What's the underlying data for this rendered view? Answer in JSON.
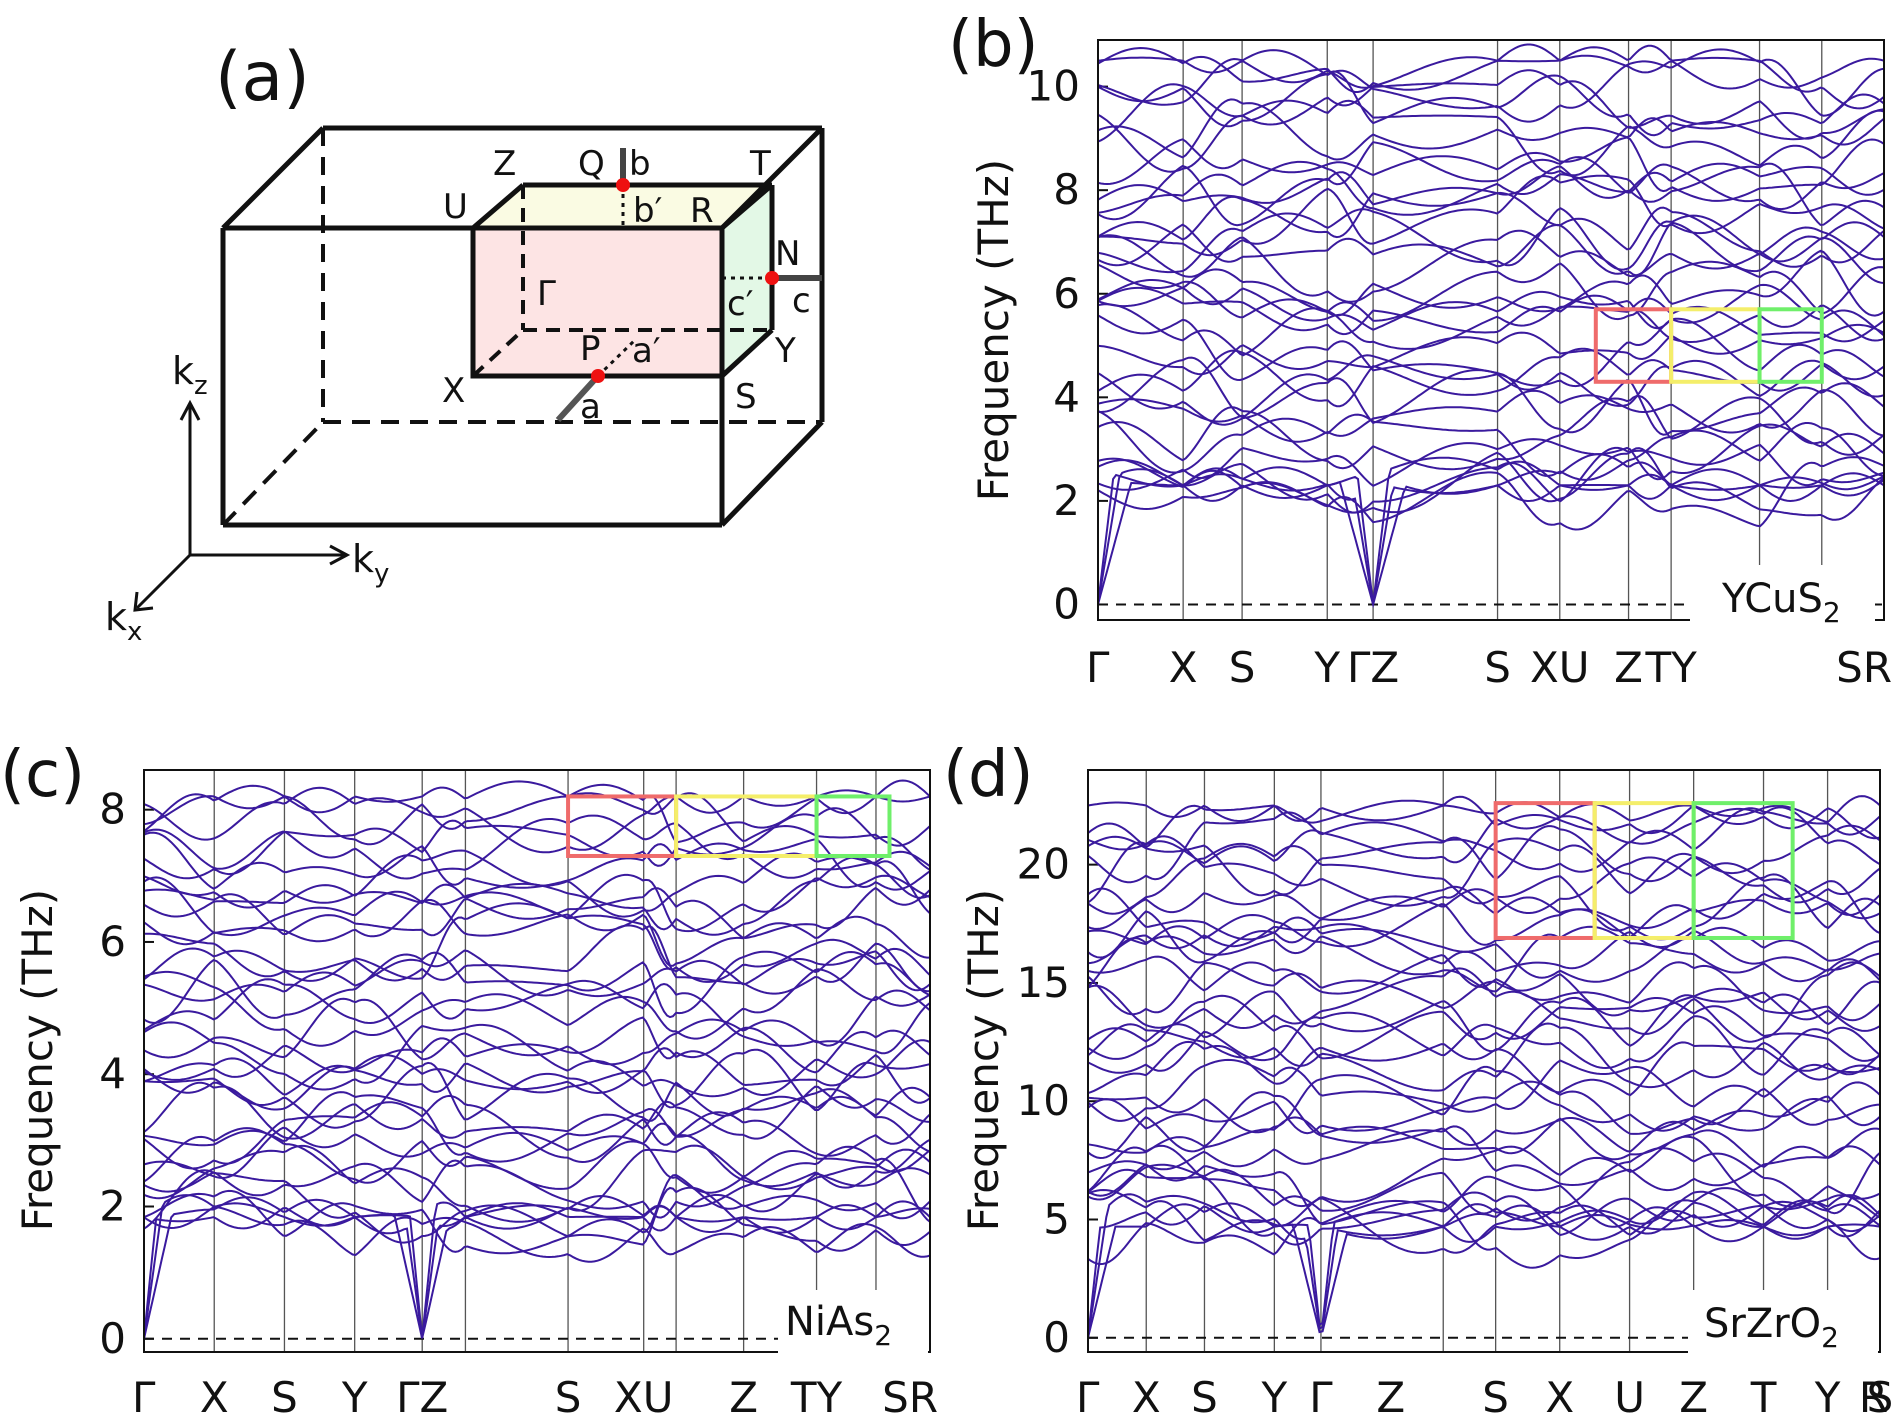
{
  "colors": {
    "band": "#3a1a9e",
    "box_red": "#ef6b6b",
    "box_yellow": "#f4ee6a",
    "box_green": "#6fef6a",
    "axis": "#111111"
  },
  "panel_a": {
    "letter": "(a)",
    "axes": {
      "kz": "k",
      "kz_sub": "z",
      "ky": "k",
      "ky_sub": "y",
      "kx": "k",
      "kx_sub": "x"
    },
    "points": {
      "Q": "Q",
      "b": "b",
      "T": "T",
      "Z": "Z",
      "U": "U",
      "bp": "b′",
      "R": "R",
      "N": "N",
      "Gamma": "Γ",
      "cp": "c′",
      "c": "c",
      "P": "P",
      "ap": "a′",
      "Y": "Y",
      "X": "X",
      "a": "a",
      "S": "S"
    }
  },
  "chart_data": [
    {
      "id": "b",
      "type": "line",
      "letter": "(b)",
      "material": "YCuS",
      "material_sub": "2",
      "ylabel": "Frequency (THz)",
      "ylim": [
        -0.3,
        10.9
      ],
      "yticks": [
        0,
        2,
        4,
        6,
        8,
        10
      ],
      "kpoints": [
        0,
        1.3,
        2.2,
        3.5,
        4.2,
        6.1,
        7.05,
        8.1,
        8.75,
        10.1,
        11.05,
        12.0
      ],
      "hs_labels": [
        "Γ",
        "X",
        "S",
        "Y",
        "ΓZ",
        "S",
        "XU",
        "Z",
        "TY",
        "SR"
      ],
      "hs_pos": [
        0,
        1.3,
        2.2,
        3.5,
        4.2,
        6.1,
        7.05,
        8.1,
        8.75,
        11.05
      ],
      "n_bands": 36,
      "fmax": 10.5,
      "acoustic_at": [
        0,
        4.2
      ],
      "highlight": [
        {
          "x": [
            7.6,
            8.75
          ],
          "y": [
            4.3,
            5.7
          ],
          "color": "red"
        },
        {
          "x": [
            8.75,
            10.1
          ],
          "y": [
            4.3,
            5.7
          ],
          "color": "yellow"
        },
        {
          "x": [
            10.1,
            11.05
          ],
          "y": [
            4.3,
            5.7
          ],
          "color": "green"
        }
      ]
    },
    {
      "id": "c",
      "type": "line",
      "letter": "(c)",
      "material": "NiAs",
      "material_sub": "2",
      "ylabel": "Frequency (THz)",
      "ylim": [
        -0.2,
        8.6
      ],
      "yticks": [
        0,
        2,
        4,
        6,
        8
      ],
      "kpoints": [
        0,
        1.3,
        2.6,
        3.9,
        5.15,
        5.95,
        7.85,
        9.25,
        9.85,
        11.1,
        12.45,
        13.55,
        14.55
      ],
      "hs_labels": [
        "Γ",
        "X",
        "S",
        "Y",
        "ΓZ",
        "S",
        "XU",
        "Z",
        "TY",
        "SR"
      ],
      "hs_pos": [
        0,
        1.3,
        2.6,
        3.9,
        5.15,
        7.85,
        9.25,
        11.1,
        12.45,
        14.55
      ],
      "n_bands": 36,
      "fmax": 8.2,
      "acoustic_at": [
        0,
        5.15
      ],
      "highlight": [
        {
          "x": [
            7.85,
            9.85
          ],
          "y": [
            7.3,
            8.2
          ],
          "color": "red"
        },
        {
          "x": [
            9.85,
            12.45
          ],
          "y": [
            7.3,
            8.2
          ],
          "color": "yellow"
        },
        {
          "x": [
            12.45,
            13.8
          ],
          "y": [
            7.3,
            8.2
          ],
          "color": "green"
        }
      ]
    },
    {
      "id": "d",
      "type": "line",
      "letter": "(d)",
      "material": "SrZrO",
      "material_sub": "2",
      "ylabel": "Frequency (THz)",
      "ylim": [
        -0.6,
        24
      ],
      "yticks": [
        0,
        5,
        10,
        15,
        20
      ],
      "kpoints": [
        0,
        1.0,
        2.0,
        3.2,
        4.0,
        6.1,
        7.0,
        8.1,
        9.3,
        10.4,
        11.6,
        12.7,
        13.6
      ],
      "hs_labels": [
        "Γ",
        "X",
        "S",
        "Y",
        "Γ",
        "Z",
        "S",
        "X",
        "U",
        "Z",
        "T",
        "Y",
        "S",
        "R"
      ],
      "hs_pos": [
        0,
        1.0,
        2.0,
        3.2,
        4.0,
        5.2,
        7.0,
        8.1,
        9.3,
        10.4,
        11.6,
        12.7,
        13.6,
        14.8
      ],
      "n_bands": 36,
      "fmax": 22.5,
      "acoustic_at": [
        0,
        4.0
      ],
      "highlight": [
        {
          "x": [
            7.0,
            8.7
          ],
          "y": [
            16.9,
            22.6
          ],
          "color": "red"
        },
        {
          "x": [
            8.7,
            10.4
          ],
          "y": [
            16.9,
            22.6
          ],
          "color": "yellow"
        },
        {
          "x": [
            10.4,
            12.1
          ],
          "y": [
            16.9,
            22.6
          ],
          "color": "green"
        }
      ]
    }
  ]
}
